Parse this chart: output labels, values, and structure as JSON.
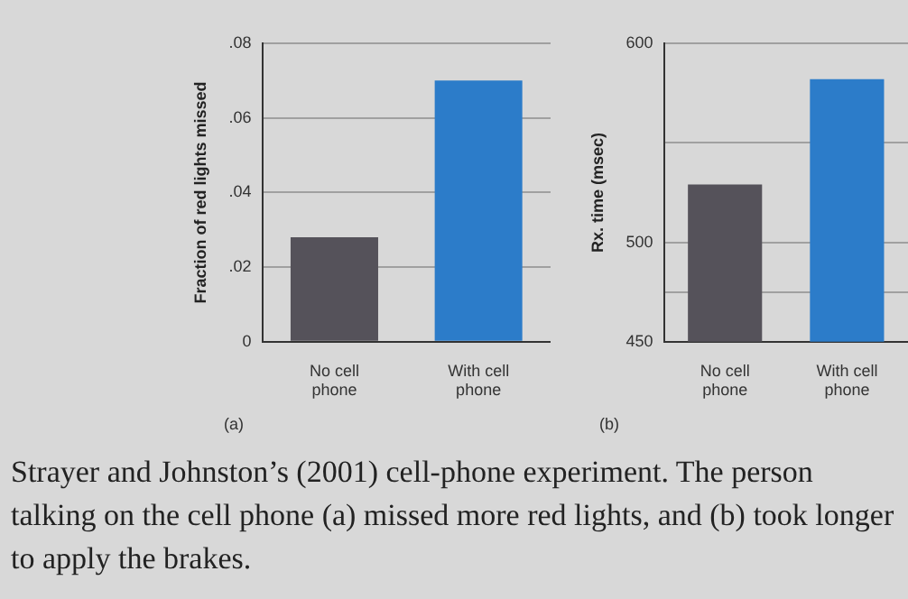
{
  "chart_data": [
    {
      "type": "bar",
      "categories": [
        "No cell phone",
        "With cell phone"
      ],
      "colors": [
        "#55525a",
        "#2c7cc9"
      ],
      "values": [
        0.028,
        0.07
      ],
      "ylabel": "Fraction of red lights missed",
      "ylim": [
        0,
        0.08
      ],
      "yticks": [
        0,
        {
          "value": 0.02,
          "label": ".02"
        },
        {
          "value": 0.04,
          "label": ".04"
        },
        {
          "value": 0.06,
          "label": ".06"
        },
        {
          "value": 0.08,
          "label": ".08"
        }
      ],
      "grid": "y",
      "legend": false,
      "annotations": [
        "(a)",
        "Strayer and Johnston’s (2001) cell-phone experiment. The person talking on the cell phone (a) missed more red lights, and (b) took longer to apply the brakes."
      ]
    },
    {
      "type": "bar",
      "categories": [
        "No cell phone",
        "With cell phone"
      ],
      "colors": [
        "#55525a",
        "#2c7cc9"
      ],
      "values": [
        529,
        582
      ],
      "ylabel": "Rx. time (msec)",
      "ylim": [
        450,
        600
      ],
      "yticks": [
        450,
        {
          "value": 475,
          "label": null
        },
        500,
        {
          "value": 550,
          "label": null
        },
        600
      ],
      "grid": "y",
      "legend": false,
      "annotations": [
        "(b)"
      ]
    }
  ]
}
